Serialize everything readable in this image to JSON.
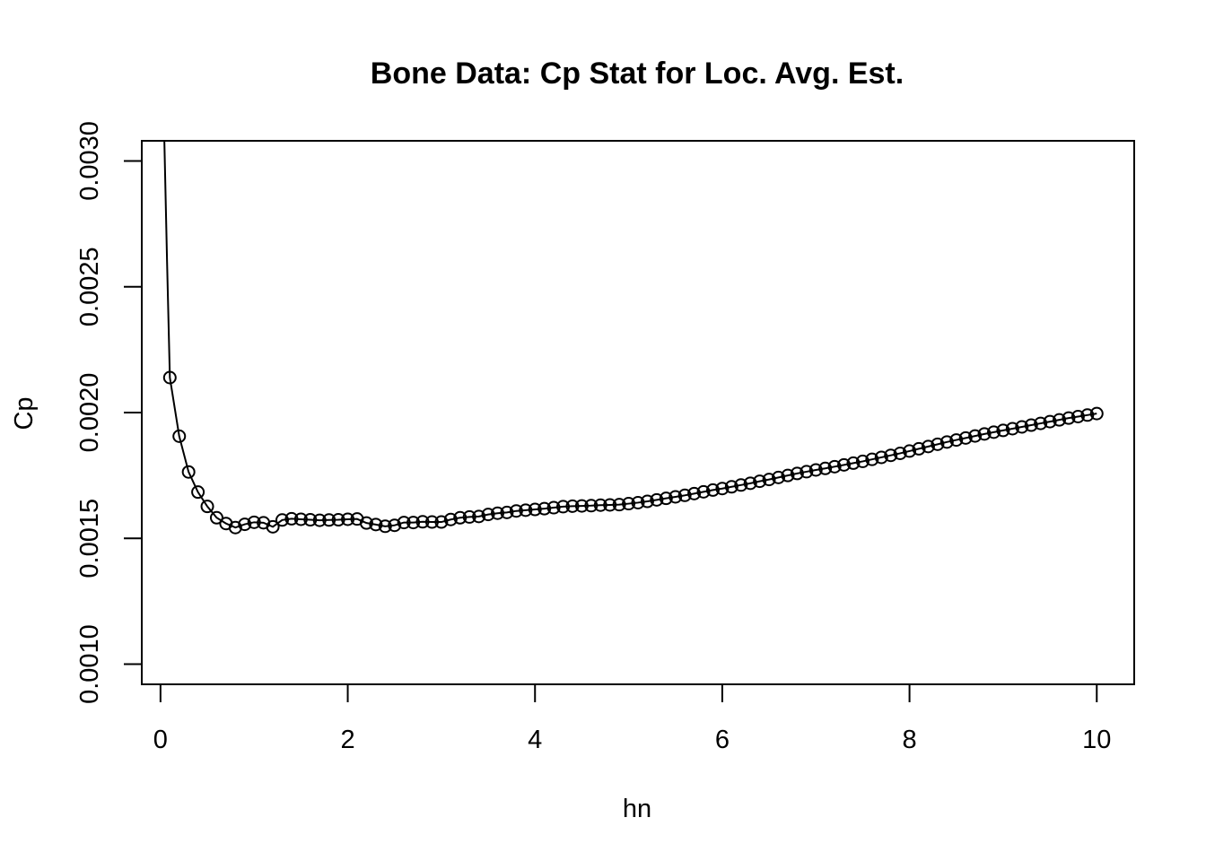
{
  "chart_data": {
    "type": "line",
    "title": "Bone Data: Cp Stat for Loc. Avg. Est.",
    "xlabel": "hn",
    "ylabel": "Cp",
    "xlim": [
      -0.2,
      10.4
    ],
    "ylim": [
      0.00092,
      0.00308
    ],
    "x_ticks": [
      0,
      2,
      4,
      6,
      8,
      10
    ],
    "x_tick_labels": [
      "0",
      "2",
      "4",
      "6",
      "8",
      "10"
    ],
    "y_ticks": [
      0.001,
      0.0015,
      0.002,
      0.0025,
      0.003
    ],
    "y_tick_labels": [
      "0.0010",
      "0.0015",
      "0.0020",
      "0.0025",
      "0.0030"
    ],
    "grid": false,
    "legend": "none",
    "line_color": "#000000",
    "curve_start": [
      {
        "x": 0.04,
        "y": 0.0031
      },
      {
        "x": 0.07,
        "y": 0.0026
      }
    ],
    "series": [
      {
        "x": [
          0.1,
          0.2,
          0.3,
          0.4,
          0.5,
          0.6,
          0.7,
          0.8,
          0.9,
          1.0,
          1.1,
          1.2,
          1.3,
          1.4,
          1.5,
          1.6,
          1.7,
          1.8,
          1.9,
          2.0,
          2.1,
          2.2,
          2.3,
          2.4,
          2.5,
          2.6,
          2.7,
          2.8,
          2.9,
          3.0,
          3.1,
          3.2,
          3.3,
          3.4,
          3.5,
          3.6,
          3.7,
          3.8,
          3.9,
          4.0,
          4.1,
          4.2,
          4.3,
          4.4,
          4.5,
          4.6,
          4.7,
          4.8,
          4.9,
          5.0,
          5.1,
          5.2,
          5.3,
          5.4,
          5.5,
          5.6,
          5.7,
          5.8,
          5.9,
          6.0,
          6.1,
          6.2,
          6.3,
          6.4,
          6.5,
          6.6,
          6.7,
          6.8,
          6.9,
          7.0,
          7.1,
          7.2,
          7.3,
          7.4,
          7.5,
          7.6,
          7.7,
          7.8,
          7.9,
          8.0,
          8.1,
          8.2,
          8.3,
          8.4,
          8.5,
          8.6,
          8.7,
          8.8,
          8.9,
          9.0,
          9.1,
          9.2,
          9.3,
          9.4,
          9.5,
          9.6,
          9.7,
          9.8,
          9.9,
          10.0
        ],
        "values": [
          0.002139,
          0.001906,
          0.001764,
          0.001684,
          0.001627,
          0.001582,
          0.001559,
          0.001543,
          0.001556,
          0.001564,
          0.001562,
          0.001546,
          0.001573,
          0.001578,
          0.001576,
          0.001574,
          0.001572,
          0.001573,
          0.001574,
          0.001576,
          0.001577,
          0.001561,
          0.001555,
          0.001548,
          0.001552,
          0.001563,
          0.001563,
          0.001566,
          0.001565,
          0.001565,
          0.001575,
          0.001582,
          0.001585,
          0.001587,
          0.001595,
          0.0016,
          0.001603,
          0.001609,
          0.001612,
          0.001615,
          0.001618,
          0.001622,
          0.001626,
          0.001628,
          0.001629,
          0.00163,
          0.001632,
          0.001633,
          0.001634,
          0.001638,
          0.001642,
          0.001647,
          0.001653,
          0.001659,
          0.001665,
          0.001671,
          0.001678,
          0.001685,
          0.001692,
          0.001698,
          0.001705,
          0.001712,
          0.001719,
          0.001727,
          0.001734,
          0.001742,
          0.00175,
          0.001758,
          0.001765,
          0.001772,
          0.001778,
          0.001785,
          0.001792,
          0.001799,
          0.001806,
          0.001814,
          0.001822,
          0.00183,
          0.001838,
          0.001847,
          0.001856,
          0.001865,
          0.001874,
          0.001883,
          0.001891,
          0.001899,
          0.001907,
          0.001915,
          0.001922,
          0.001929,
          0.001936,
          0.001943,
          0.00195,
          0.001957,
          0.001964,
          0.001971,
          0.001978,
          0.001984,
          0.00199,
          0.001996
        ]
      }
    ]
  }
}
